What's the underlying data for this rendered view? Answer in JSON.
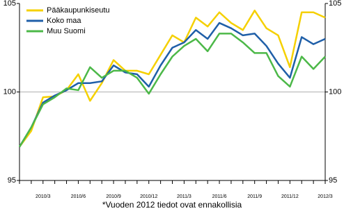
{
  "chart_data": {
    "type": "line",
    "categories": [
      null,
      null,
      "2010/3",
      null,
      null,
      "2010/6",
      null,
      null,
      "2010/9",
      null,
      null,
      "2010/12",
      null,
      null,
      "2011/3",
      null,
      null,
      "2011/6",
      null,
      null,
      "2011/9",
      null,
      null,
      "2011/12",
      null,
      null,
      "2012/3"
    ],
    "series": [
      {
        "name": "Pääkaupunkiseutu",
        "color": "#f5d000",
        "values": [
          96.9,
          97.8,
          99.7,
          99.75,
          100.1,
          101.0,
          99.5,
          100.5,
          101.8,
          101.2,
          101.2,
          101.0,
          102.1,
          103.2,
          102.8,
          104.2,
          103.7,
          104.5,
          103.9,
          103.5,
          104.6,
          103.6,
          103.2,
          101.4,
          104.5,
          104.5,
          104.2
        ]
      },
      {
        "name": "Koko maa",
        "color": "#1f5fa8",
        "values": [
          96.9,
          98.0,
          99.4,
          99.8,
          100.1,
          100.5,
          100.5,
          100.6,
          101.5,
          101.1,
          101.0,
          100.3,
          101.5,
          102.5,
          102.8,
          103.5,
          103.0,
          103.9,
          103.6,
          103.2,
          103.3,
          102.6,
          101.6,
          100.8,
          103.1,
          102.7,
          103.0
        ]
      },
      {
        "name": "Muu Suomi",
        "color": "#4cb848",
        "values": [
          96.9,
          98.0,
          99.3,
          99.7,
          100.2,
          100.1,
          101.4,
          100.8,
          101.2,
          101.2,
          100.8,
          99.9,
          101.0,
          102.0,
          102.6,
          103.0,
          102.3,
          103.3,
          103.3,
          102.8,
          102.2,
          102.2,
          100.9,
          100.3,
          102.0,
          101.3,
          102.0
        ]
      }
    ],
    "ylim": [
      95,
      105
    ],
    "yticks": [
      95,
      100,
      105
    ],
    "y2lim": [
      95,
      105
    ],
    "y2ticks": [
      95,
      100,
      105
    ],
    "grid": true,
    "legend": "top-left",
    "footnote": "*Vuoden 2012 tiedot ovat ennakollisia"
  }
}
